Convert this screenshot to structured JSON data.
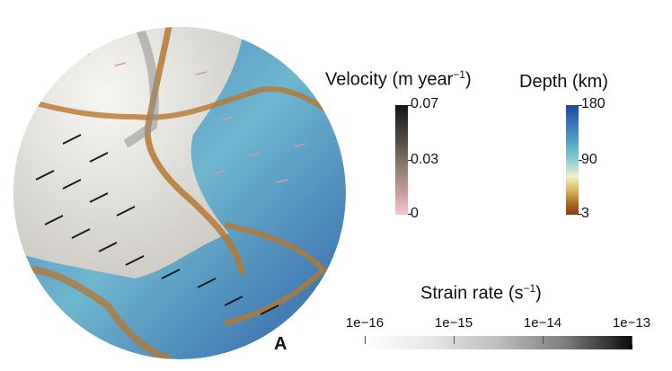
{
  "panel_label": "A",
  "velocity_bar": {
    "title": "Velocity (m year",
    "title_sup": "−1",
    "title_end": ")",
    "ticks": [
      "0.07",
      "0.03",
      "0"
    ],
    "colors": {
      "top": "#141414",
      "mid": "#8c7b6a",
      "bottom": "#f6c7cc"
    }
  },
  "depth_bar": {
    "title": "Depth (km)",
    "ticks": [
      "180",
      "90",
      "3"
    ],
    "colors": {
      "top": "#23469c",
      "mid_upper": "#5bb0c9",
      "mid": "#f2f0c8",
      "bottom": "#8b3a10"
    }
  },
  "strain_bar": {
    "title": "Strain rate (s",
    "title_sup": "−1",
    "title_end": ")",
    "ticks": [
      "1e−16",
      "1e−15",
      "1e−14",
      "1e−13"
    ],
    "colors": {
      "low": "#ffffff",
      "high": "#0a0a0a"
    }
  },
  "globe": {
    "colors": {
      "plate": "#ecebe6",
      "ocean_deep": "#2f6cb0",
      "ocean_mid": "#6fb6cf",
      "ridge": "#c8893c",
      "arrow_dark": "#1b1b1b",
      "arrow_pink": "#d79aa0"
    }
  }
}
